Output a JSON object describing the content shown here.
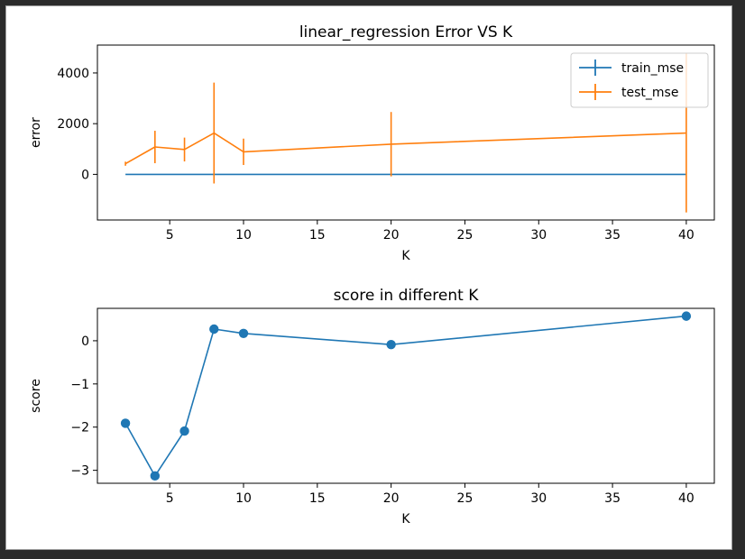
{
  "chart_data": [
    {
      "type": "line",
      "title": "linear_regression Error VS K",
      "xlabel": "K",
      "ylabel": "error",
      "xlim": [
        0.1,
        41.9
      ],
      "ylim": [
        -1800,
        5100
      ],
      "xticks": [
        5,
        10,
        15,
        20,
        25,
        30,
        35,
        40
      ],
      "yticks": [
        0,
        2000,
        4000
      ],
      "grid": false,
      "legend_position": "upper right",
      "series": [
        {
          "name": "train_mse",
          "color": "#1f77b4",
          "x": [
            2,
            4,
            6,
            8,
            10,
            20,
            40
          ],
          "y": [
            0,
            0,
            0,
            0,
            0,
            0,
            0
          ],
          "yerr": [
            0,
            0,
            0,
            0,
            0,
            0,
            0
          ]
        },
        {
          "name": "test_mse",
          "color": "#ff7f0e",
          "x": [
            2,
            4,
            6,
            8,
            10,
            20,
            40
          ],
          "y": [
            420,
            1080,
            980,
            1630,
            890,
            1190,
            1630
          ],
          "yerr": [
            80,
            640,
            470,
            1990,
            520,
            1270,
            3130
          ]
        }
      ]
    },
    {
      "type": "line",
      "title": "score in different K",
      "xlabel": "K",
      "ylabel": "score",
      "xlim": [
        0.1,
        41.9
      ],
      "ylim": [
        -3.3,
        0.75
      ],
      "xticks": [
        5,
        10,
        15,
        20,
        25,
        30,
        35,
        40
      ],
      "yticks": [
        -3,
        -2,
        -1,
        0
      ],
      "grid": false,
      "series": [
        {
          "color": "#1f77b4",
          "marker": "circle",
          "x": [
            2,
            4,
            6,
            8,
            10,
            20,
            40
          ],
          "y": [
            -1.91,
            -3.13,
            -2.09,
            0.27,
            0.17,
            -0.09,
            0.57
          ]
        }
      ]
    }
  ]
}
